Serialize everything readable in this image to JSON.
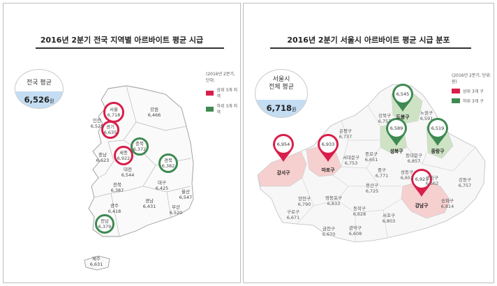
{
  "left": {
    "title": "2016년 2분기 전국 지역별 아르바이트 평균 시급",
    "avg_label": "전국 평균",
    "avg_value": "6,526",
    "avg_unit": "원",
    "legend_note": "(2016년 2분기, 단위:",
    "legend_top": "상위 3개 지역",
    "legend_bottom": "하위 3개 지역",
    "regions": {
      "seoul": {
        "name": "서울",
        "value": "6,718",
        "rank": "top"
      },
      "gyeonggi": {
        "name": "경기",
        "value": "6,635",
        "rank": "top"
      },
      "sejong": {
        "name": "세종",
        "value": "6,922",
        "rank": "top"
      },
      "chungbuk": {
        "name": "충북",
        "value": "6,372",
        "rank": "bottom"
      },
      "gyeongbuk": {
        "name": "경북",
        "value": "6,382",
        "rank": "bottom"
      },
      "jeonnam": {
        "name": "전남",
        "value": "6,379",
        "rank": "bottom"
      },
      "incheon": {
        "name": "인천",
        "value": "6,525"
      },
      "gangwon": {
        "name": "강원",
        "value": "6,466"
      },
      "chungnam": {
        "name": "충남",
        "value": "6,623"
      },
      "daejeon": {
        "name": "대전",
        "value": "6,544"
      },
      "jeonbuk": {
        "name": "전북",
        "value": "6,387"
      },
      "daegu": {
        "name": "대구",
        "value": "6,425"
      },
      "ulsan": {
        "name": "울산",
        "value": "6,547"
      },
      "gyeongnam": {
        "name": "경남",
        "value": "6,431"
      },
      "busan": {
        "name": "부산",
        "value": "6,520"
      },
      "gwangju": {
        "name": "광주",
        "value": "6,418"
      },
      "jeju": {
        "name": "제주",
        "value": "6,631"
      }
    }
  },
  "right": {
    "title": "2016년 2분기 서울시 아르바이트 평균 시급 분포",
    "avg_label_1": "서울시",
    "avg_label_2": "전체 평균",
    "avg_value": "6,718",
    "avg_unit": "원",
    "legend_note": "(2016년 2분기, 단위: 원)",
    "legend_top": "상위 3개 구",
    "legend_bottom": "하위 3개 구",
    "districts": {
      "gangseo": {
        "name": "강서구",
        "value": "6,954",
        "rank": "top"
      },
      "mapo": {
        "name": "마포구",
        "value": "6,933",
        "rank": "top"
      },
      "gangnam": {
        "name": "강남구",
        "value": "6,923",
        "rank": "top"
      },
      "dobong": {
        "name": "도봉구",
        "value": "6,545",
        "rank": "bottom"
      },
      "seongbuk": {
        "name": "성북구",
        "value": "6,589",
        "rank": "bottom"
      },
      "jungnang": {
        "name": "중랑구",
        "value": "6,519",
        "rank": "bottom"
      },
      "gangbuk": {
        "name": "강북구",
        "value": "6,757"
      },
      "nowon": {
        "name": "노원구",
        "value": "6,591"
      },
      "eunpyeong": {
        "name": "은평구",
        "value": "6,737"
      },
      "jongno": {
        "name": "종로구",
        "value": "6,651"
      },
      "seodaemun": {
        "name": "서대문구",
        "value": "6,753"
      },
      "dongdaemun": {
        "name": "동대문구",
        "value": "6,857"
      },
      "jung": {
        "name": "중구",
        "value": "6,771"
      },
      "seongdong": {
        "name": "성동구",
        "value": "6,651"
      },
      "gwangjin": {
        "name": "광진구",
        "value": "6,662"
      },
      "yongsan": {
        "name": "용산구",
        "value": "6,725"
      },
      "gangdong": {
        "name": "강동구",
        "value": "6,757"
      },
      "yangcheon": {
        "name": "양천구",
        "value": "6,790"
      },
      "yeongdeungpo": {
        "name": "영등포구",
        "value": "6,833"
      },
      "dongjak": {
        "name": "동작구",
        "value": "6,628"
      },
      "guro": {
        "name": "구로구",
        "value": "6,671"
      },
      "seocho": {
        "name": "서초구",
        "value": "6,803"
      },
      "songpa": {
        "name": "송파구",
        "value": "6,814"
      },
      "geumcheon": {
        "name": "금천구",
        "value": "6,670"
      },
      "gwanak": {
        "name": "관악구",
        "value": "6,608"
      }
    }
  },
  "colors": {
    "top": "#d81e4a",
    "bottom": "#3e8a52",
    "avg_fill": "#c4ddf3",
    "top_area": "#f6cfcf",
    "bottom_area": "#cde3c4"
  }
}
